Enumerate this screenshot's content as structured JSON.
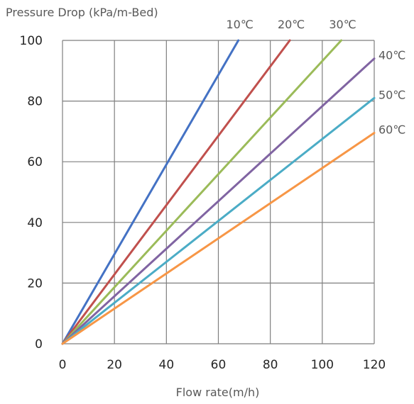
{
  "chart_data": {
    "type": "line",
    "ylabel": "Pressure Drop (kPa/m-Bed)",
    "xlabel": "Flow rate(m/h)",
    "xlim": [
      0,
      120
    ],
    "ylim": [
      0,
      100
    ],
    "xticks": [
      "0",
      "20",
      "40",
      "60",
      "80",
      "100",
      "120"
    ],
    "yticks": [
      "0",
      "20",
      "40",
      "60",
      "80",
      "100"
    ],
    "grid": true,
    "legend": "inline-labels-top-right",
    "series": [
      {
        "name": "10℃",
        "color": "#4472C4",
        "x": [
          0,
          67.7
        ],
        "y": [
          0,
          100
        ]
      },
      {
        "name": "20℃",
        "color": "#C0504D",
        "x": [
          0,
          87.5
        ],
        "y": [
          0,
          100
        ]
      },
      {
        "name": "30℃",
        "color": "#9BBB59",
        "x": [
          0,
          107.3
        ],
        "y": [
          0,
          100
        ]
      },
      {
        "name": "40℃",
        "color": "#8064A2",
        "x": [
          0,
          120
        ],
        "y": [
          0,
          94
        ]
      },
      {
        "name": "50℃",
        "color": "#4BACC6",
        "x": [
          0,
          120
        ],
        "y": [
          0,
          81
        ]
      },
      {
        "name": "60℃",
        "color": "#F79646",
        "x": [
          0,
          120
        ],
        "y": [
          0,
          69.5
        ]
      }
    ]
  }
}
